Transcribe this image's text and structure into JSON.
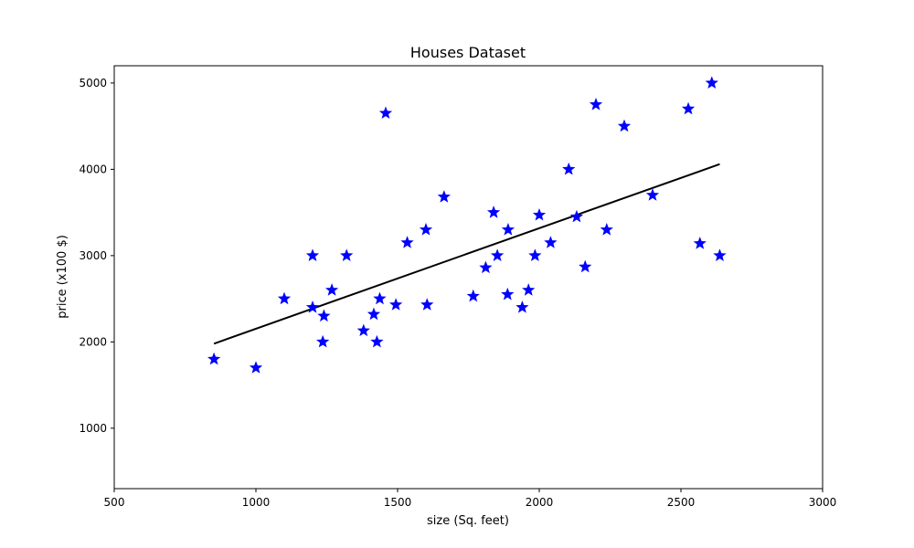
{
  "chart_data": {
    "type": "scatter",
    "title": "Houses Dataset",
    "xlabel": "size (Sq. feet)",
    "ylabel": "price (x100 $)",
    "xlim": [
      500,
      3000
    ],
    "ylim": [
      300,
      5200
    ],
    "xticks": [
      500,
      1000,
      1500,
      2000,
      2500,
      3000
    ],
    "yticks": [
      1000,
      2000,
      3000,
      4000,
      5000
    ],
    "grid": false,
    "legend": "none",
    "marker": "star",
    "colors": {
      "points": "#0000ff",
      "fit_line": "#000000",
      "axes": "#000000",
      "background": "#ffffff"
    },
    "series": [
      {
        "points": [
          [
            852,
            1800
          ],
          [
            1000,
            1700
          ],
          [
            1100,
            2500
          ],
          [
            1200,
            3000
          ],
          [
            1200,
            2400
          ],
          [
            1236,
            2000
          ],
          [
            1240,
            2300
          ],
          [
            1268,
            2600
          ],
          [
            1320,
            3000
          ],
          [
            1380,
            2130
          ],
          [
            1416,
            2320
          ],
          [
            1427,
            2000
          ],
          [
            1437,
            2500
          ],
          [
            1458,
            4650
          ],
          [
            1494,
            2430
          ],
          [
            1534,
            3150
          ],
          [
            1600,
            3300
          ],
          [
            1604,
            2430
          ],
          [
            1664,
            3680
          ],
          [
            1767,
            2530
          ],
          [
            1811,
            2860
          ],
          [
            1839,
            3500
          ],
          [
            1852,
            3000
          ],
          [
            1888,
            2550
          ],
          [
            1890,
            3300
          ],
          [
            1940,
            2400
          ],
          [
            1962,
            2600
          ],
          [
            1985,
            3000
          ],
          [
            2000,
            3470
          ],
          [
            2040,
            3150
          ],
          [
            2104,
            4000
          ],
          [
            2132,
            3450
          ],
          [
            2162,
            2870
          ],
          [
            2200,
            4750
          ],
          [
            2238,
            3300
          ],
          [
            2300,
            4500
          ],
          [
            2400,
            3700
          ],
          [
            2526,
            4700
          ],
          [
            2567,
            3140
          ],
          [
            2609,
            5000
          ],
          [
            2637,
            3000
          ]
        ]
      }
    ],
    "fit_line": {
      "x": [
        852,
        2637
      ],
      "y": [
        1980,
        4060
      ]
    }
  }
}
